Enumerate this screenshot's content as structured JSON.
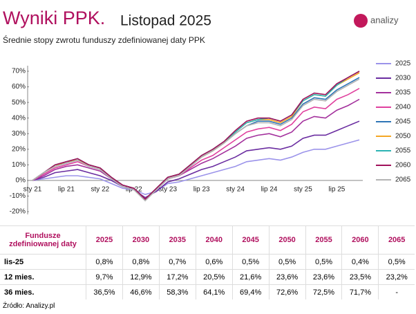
{
  "brand": "analizy",
  "source": "Źródło: Analizy.pl",
  "chart_data": {
    "type": "line",
    "title": "Wyniki PPK.",
    "period": "Listopad 2025",
    "subtitle": "Średnie stopy zwrotu funduszy zdefiniowanej daty PPK",
    "categories": [
      "sty 21",
      null,
      null,
      "lip 21",
      null,
      null,
      "sty 22",
      null,
      null,
      "lip 22",
      null,
      null,
      "sty 23",
      null,
      null,
      "lip 23",
      null,
      null,
      "sty 24",
      null,
      null,
      "lip 24",
      null,
      null,
      "sty 25",
      null,
      null,
      "lip 25",
      null,
      null
    ],
    "ylim": [
      -20,
      70
    ],
    "yticks": [
      {
        "value": -20,
        "label": "-20%"
      },
      {
        "value": -10,
        "label": "-10%"
      },
      {
        "value": 0,
        "label": "0%"
      },
      {
        "value": 10,
        "label": "10%"
      },
      {
        "value": 20,
        "label": "20%"
      },
      {
        "value": 30,
        "label": "30%"
      },
      {
        "value": 40,
        "label": "40%"
      },
      {
        "value": 50,
        "label": "50%"
      },
      {
        "value": 60,
        "label": "60%"
      },
      {
        "value": 70,
        "label": "70%"
      }
    ],
    "grid": false,
    "legend": "right",
    "series": [
      {
        "name": "2025",
        "color": "#9b93ea",
        "values": [
          0,
          1,
          2,
          3,
          3,
          2,
          1,
          -2,
          -5,
          -6,
          -9,
          -7,
          -2,
          -1,
          1,
          3,
          5,
          7,
          9,
          12,
          13,
          14,
          13,
          15,
          18,
          20,
          20,
          22,
          24,
          26
        ]
      },
      {
        "name": "2030",
        "color": "#6a2ca0",
        "values": [
          0,
          2,
          5,
          6,
          7,
          5,
          3,
          0,
          -4,
          -6,
          -11,
          -7,
          -1,
          1,
          4,
          7,
          9,
          12,
          15,
          19,
          20,
          21,
          20,
          22,
          27,
          29,
          29,
          32,
          35,
          38
        ]
      },
      {
        "name": "2035",
        "color": "#a3309c",
        "values": [
          0,
          3,
          7,
          9,
          10,
          8,
          6,
          1,
          -3,
          -5,
          -12,
          -6,
          1,
          3,
          7,
          11,
          14,
          18,
          22,
          27,
          29,
          30,
          28,
          31,
          38,
          41,
          40,
          45,
          48,
          52
        ]
      },
      {
        "name": "2040",
        "color": "#e0409e",
        "values": [
          0,
          4,
          8,
          10,
          12,
          9,
          7,
          2,
          -3,
          -5,
          -12,
          -5,
          1,
          3,
          8,
          13,
          16,
          21,
          26,
          31,
          33,
          34,
          32,
          36,
          44,
          47,
          46,
          52,
          55,
          59
        ]
      },
      {
        "name": "2045",
        "color": "#2e75b6",
        "values": [
          0,
          5,
          9,
          11,
          13,
          10,
          8,
          2,
          -3,
          -5,
          -12,
          -5,
          2,
          4,
          9,
          15,
          19,
          24,
          30,
          35,
          38,
          38,
          36,
          40,
          49,
          53,
          52,
          58,
          62,
          66
        ]
      },
      {
        "name": "2050",
        "color": "#f5a623",
        "values": [
          0,
          5,
          9,
          12,
          13,
          10,
          8,
          2,
          -3,
          -5,
          -12,
          -5,
          2,
          4,
          10,
          15,
          19,
          24,
          31,
          37,
          39,
          39,
          37,
          41,
          51,
          55,
          54,
          61,
          65,
          69
        ]
      },
      {
        "name": "2055",
        "color": "#2bb3b3",
        "values": [
          0,
          5,
          10,
          12,
          14,
          10,
          8,
          2,
          -3,
          -5,
          -12,
          -5,
          2,
          4,
          10,
          16,
          20,
          25,
          31,
          37,
          39,
          40,
          38,
          42,
          51,
          55,
          54,
          61,
          66,
          70
        ]
      },
      {
        "name": "2060",
        "color": "#a0105a",
        "values": [
          0,
          5,
          10,
          12,
          14,
          10,
          8,
          2,
          -3,
          -5,
          -12,
          -5,
          2,
          4,
          10,
          16,
          20,
          25,
          32,
          38,
          40,
          40,
          38,
          42,
          52,
          56,
          55,
          62,
          66,
          70
        ]
      },
      {
        "name": "2065",
        "color": "#b3b3b3",
        "values": [
          0,
          5,
          9,
          11,
          13,
          9,
          7,
          1,
          -4,
          -6,
          -13,
          -6,
          1,
          3,
          9,
          15,
          19,
          24,
          30,
          35,
          37,
          37,
          35,
          39,
          48,
          52,
          51,
          57,
          61,
          65
        ]
      }
    ]
  },
  "table": {
    "header": [
      "Fundusze zdefiniowanej daty",
      "2025",
      "2030",
      "2035",
      "2040",
      "2045",
      "2050",
      "2055",
      "2060",
      "2065"
    ],
    "rows": [
      [
        "lis-25",
        "0,8%",
        "0,8%",
        "0,7%",
        "0,6%",
        "0,5%",
        "0,5%",
        "0,5%",
        "0,4%",
        "0,5%"
      ],
      [
        "12 mies.",
        "9,7%",
        "12,9%",
        "17,2%",
        "20,5%",
        "21,6%",
        "23,6%",
        "23,6%",
        "23,5%",
        "23,2%"
      ],
      [
        "36 mies.",
        "36,5%",
        "46,6%",
        "58,3%",
        "64,1%",
        "69,4%",
        "72,6%",
        "72,5%",
        "71,7%",
        "-"
      ]
    ]
  }
}
